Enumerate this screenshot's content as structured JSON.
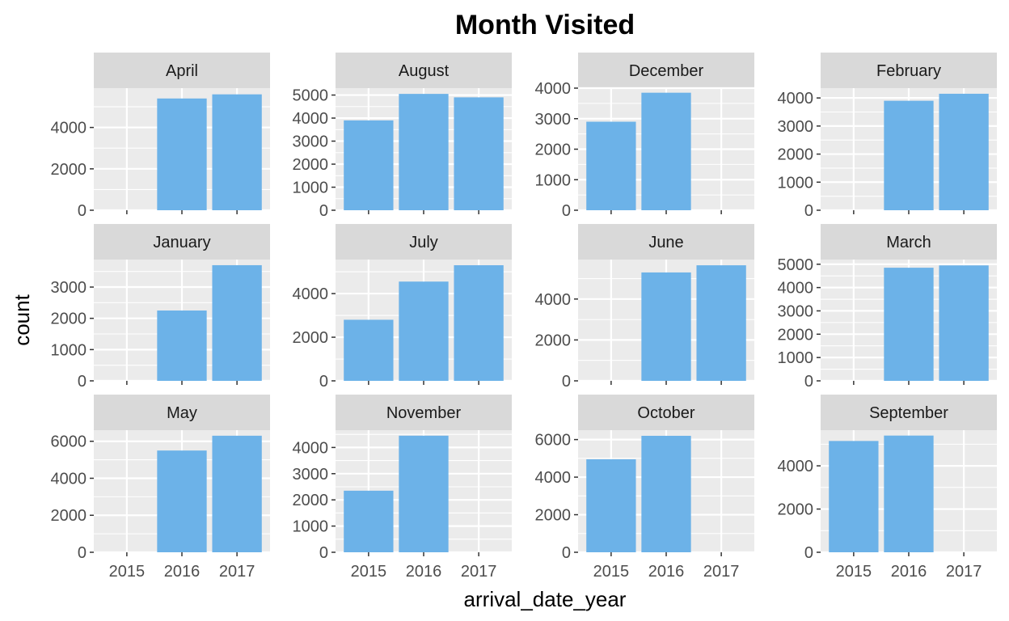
{
  "chart_data": {
    "type": "bar",
    "title": "Month Visited",
    "xlabel": "arrival_date_year",
    "ylabel": "count",
    "categories": [
      "2015",
      "2016",
      "2017"
    ],
    "grid": true,
    "colors": {
      "bar": "#6cb2e8",
      "panel": "#ebebeb",
      "strip": "#d9d9d9",
      "grid": "#ffffff",
      "tick": "#333333"
    },
    "facets": [
      {
        "label": "April",
        "values": [
          0,
          5400,
          5600
        ],
        "yticks": [
          0,
          2000,
          4000
        ],
        "ylim": [
          0,
          5900
        ]
      },
      {
        "label": "August",
        "values": [
          3900,
          5050,
          4900
        ],
        "yticks": [
          0,
          1000,
          2000,
          3000,
          4000,
          5000
        ],
        "ylim": [
          0,
          5300
        ]
      },
      {
        "label": "December",
        "values": [
          2900,
          3850,
          0
        ],
        "yticks": [
          0,
          1000,
          2000,
          3000,
          4000
        ],
        "ylim": [
          0,
          4000
        ]
      },
      {
        "label": "February",
        "values": [
          0,
          3900,
          4150
        ],
        "yticks": [
          0,
          1000,
          2000,
          3000,
          4000
        ],
        "ylim": [
          0,
          4350
        ]
      },
      {
        "label": "January",
        "values": [
          0,
          2250,
          3700
        ],
        "yticks": [
          0,
          1000,
          2000,
          3000
        ],
        "ylim": [
          0,
          3880
        ]
      },
      {
        "label": "July",
        "values": [
          2800,
          4550,
          5300
        ],
        "yticks": [
          0,
          2000,
          4000
        ],
        "ylim": [
          0,
          5560
        ]
      },
      {
        "label": "June",
        "values": [
          0,
          5300,
          5650
        ],
        "yticks": [
          0,
          2000,
          4000
        ],
        "ylim": [
          0,
          5930
        ]
      },
      {
        "label": "March",
        "values": [
          0,
          4850,
          4950
        ],
        "yticks": [
          0,
          1000,
          2000,
          3000,
          4000,
          5000
        ],
        "ylim": [
          0,
          5200
        ]
      },
      {
        "label": "May",
        "values": [
          0,
          5500,
          6300
        ],
        "yticks": [
          0,
          2000,
          4000,
          6000
        ],
        "ylim": [
          0,
          6600
        ]
      },
      {
        "label": "November",
        "values": [
          2350,
          4450,
          0
        ],
        "yticks": [
          0,
          1000,
          2000,
          3000,
          4000
        ],
        "ylim": [
          0,
          4660
        ]
      },
      {
        "label": "October",
        "values": [
          4950,
          6200,
          0
        ],
        "yticks": [
          0,
          2000,
          4000,
          6000
        ],
        "ylim": [
          0,
          6500
        ]
      },
      {
        "label": "September",
        "values": [
          5150,
          5400,
          0
        ],
        "yticks": [
          0,
          2000,
          4000
        ],
        "ylim": [
          0,
          5650
        ]
      }
    ]
  }
}
